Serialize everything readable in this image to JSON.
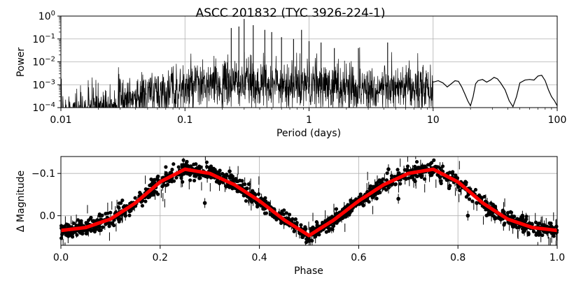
{
  "chart_data": [
    {
      "type": "line",
      "title": "ASCC 201832  (TYC 3926-224-1)",
      "xlabel": "Period (days)",
      "ylabel": "Power",
      "xscale": "log",
      "yscale": "log",
      "xlim": [
        0.01,
        100
      ],
      "ylim": [
        0.0001,
        1
      ],
      "grid": true,
      "color": "#000000",
      "x_ticks": [
        {
          "value": 0.01,
          "label": "0.01"
        },
        {
          "value": 0.1,
          "label": "0.1"
        },
        {
          "value": 1,
          "label": "1"
        },
        {
          "value": 10,
          "label": "10"
        },
        {
          "value": 100,
          "label": "100"
        }
      ],
      "y_ticks": [
        {
          "value": 0.0001,
          "base": "10",
          "exp": "−4"
        },
        {
          "value": 0.001,
          "base": "10",
          "exp": "−3"
        },
        {
          "value": 0.01,
          "base": "10",
          "exp": "−2"
        },
        {
          "value": 0.1,
          "base": "10",
          "exp": "−1"
        },
        {
          "value": 1,
          "base": "10",
          "exp": "0"
        }
      ],
      "peaks": [
        {
          "period": 0.236,
          "power": 0.3
        },
        {
          "period": 0.272,
          "power": 0.35
        },
        {
          "period": 0.3,
          "power": 0.75
        },
        {
          "period": 0.355,
          "power": 0.4
        },
        {
          "period": 0.44,
          "power": 0.25
        },
        {
          "period": 0.5,
          "power": 0.2
        },
        {
          "period": 0.6,
          "power": 0.12
        },
        {
          "period": 0.75,
          "power": 0.1
        },
        {
          "period": 0.87,
          "power": 0.25
        },
        {
          "period": 1.0,
          "power": 0.08
        },
        {
          "period": 1.25,
          "power": 0.07
        },
        {
          "period": 1.6,
          "power": 0.04
        },
        {
          "period": 2.5,
          "power": 0.04
        },
        {
          "period": 4.3,
          "power": 0.07
        }
      ],
      "long_period_curve": {
        "x": [
          10,
          11,
          12,
          13,
          14,
          15,
          16,
          17,
          18,
          19,
          20,
          21,
          22,
          23,
          25,
          27,
          29,
          31,
          33,
          35,
          38,
          41,
          44,
          47,
          50,
          55,
          60,
          65,
          70,
          75,
          80,
          85,
          90,
          95,
          100
        ],
        "y": [
          0.0013,
          0.0015,
          0.0012,
          0.0008,
          0.0011,
          0.0015,
          0.0014,
          0.0008,
          0.0004,
          0.0002,
          0.00012,
          0.0003,
          0.0011,
          0.0015,
          0.0017,
          0.0013,
          0.0016,
          0.0021,
          0.0018,
          0.0012,
          0.0006,
          0.0002,
          0.00011,
          0.0003,
          0.0012,
          0.0016,
          0.0017,
          0.0016,
          0.0024,
          0.0026,
          0.0015,
          0.0006,
          0.0003,
          0.0002,
          0.00012
        ]
      }
    },
    {
      "type": "scatter",
      "xlabel": "Phase",
      "ylabel": "Δ Magnitude",
      "xlim": [
        0.0,
        1.0
      ],
      "ylim": [
        0.07,
        -0.14
      ],
      "y_inverted": true,
      "grid": true,
      "point_color": "#000000",
      "fit_color": "#ff0000",
      "x_ticks": [
        "0.0",
        "0.2",
        "0.4",
        "0.6",
        "0.8",
        "1.0"
      ],
      "y_ticks": [
        {
          "value": -0.1,
          "label": "−0.1"
        },
        {
          "value": 0.0,
          "label": "0.0"
        }
      ],
      "fit_curve": {
        "phase": [
          0.0,
          0.05,
          0.1,
          0.15,
          0.2,
          0.25,
          0.3,
          0.35,
          0.4,
          0.45,
          0.5,
          0.55,
          0.6,
          0.65,
          0.7,
          0.75,
          0.8,
          0.85,
          0.9,
          0.95,
          1.0
        ],
        "delta_mag": [
          0.035,
          0.028,
          0.008,
          -0.03,
          -0.08,
          -0.11,
          -0.1,
          -0.073,
          -0.035,
          0.01,
          0.047,
          0.01,
          -0.035,
          -0.073,
          -0.1,
          -0.11,
          -0.08,
          -0.03,
          0.008,
          0.028,
          0.035
        ]
      },
      "scatter_band": 0.015,
      "outliers": [
        {
          "phase": 0.13,
          "delta_mag": 0.0
        },
        {
          "phase": 0.08,
          "delta_mag": 0.01
        },
        {
          "phase": 0.29,
          "delta_mag": -0.03
        },
        {
          "phase": 0.44,
          "delta_mag": -0.005
        },
        {
          "phase": 0.5,
          "delta_mag": 0.06
        },
        {
          "phase": 0.82,
          "delta_mag": 0.0
        },
        {
          "phase": 0.89,
          "delta_mag": 0.0
        },
        {
          "phase": 0.93,
          "delta_mag": 0.0
        },
        {
          "phase": 0.96,
          "delta_mag": 0.03
        },
        {
          "phase": 0.98,
          "delta_mag": 0.037
        },
        {
          "phase": 0.66,
          "delta_mag": -0.11
        },
        {
          "phase": 0.34,
          "delta_mag": -0.105
        },
        {
          "phase": 0.68,
          "delta_mag": -0.04
        },
        {
          "phase": 0.61,
          "delta_mag": -0.04
        }
      ]
    }
  ]
}
